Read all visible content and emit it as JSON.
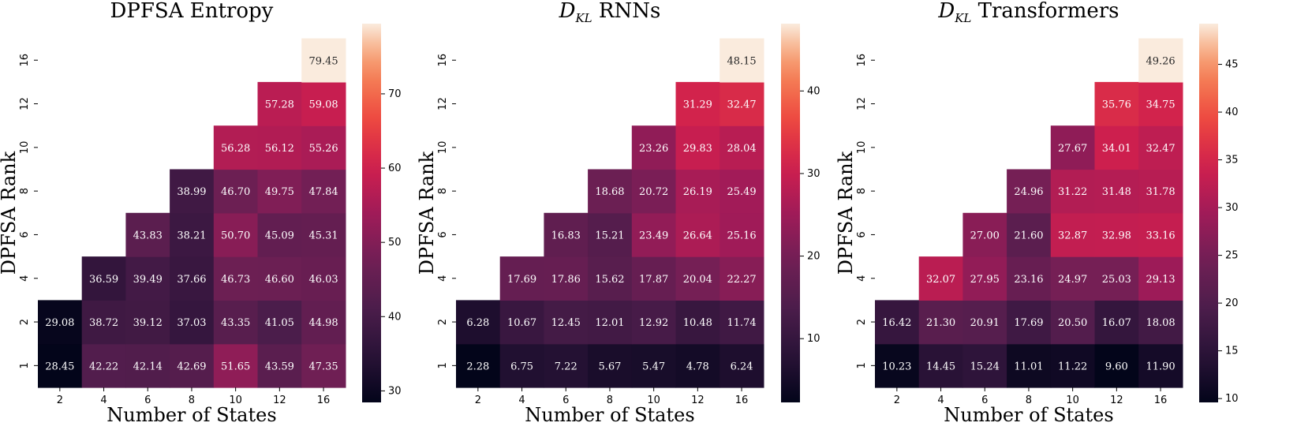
{
  "chart_data": [
    {
      "type": "heatmap",
      "title": "DPFSA Entropy",
      "xlabel": "Number of States",
      "ylabel": "DPFSA Rank",
      "x_categories": [
        "2",
        "4",
        "6",
        "8",
        "10",
        "12",
        "16"
      ],
      "y_categories": [
        "1",
        "2",
        "4",
        "6",
        "8",
        "10",
        "12",
        "16"
      ],
      "values": [
        [
          28.45,
          42.22,
          42.14,
          42.69,
          51.65,
          43.59,
          47.35
        ],
        [
          29.08,
          38.72,
          39.12,
          37.03,
          43.35,
          41.05,
          44.98
        ],
        [
          null,
          36.59,
          39.49,
          37.66,
          46.73,
          46.6,
          46.03
        ],
        [
          null,
          null,
          43.83,
          38.21,
          50.7,
          45.09,
          45.31
        ],
        [
          null,
          null,
          null,
          38.99,
          46.7,
          49.75,
          47.84
        ],
        [
          null,
          null,
          null,
          null,
          56.28,
          56.12,
          55.26
        ],
        [
          null,
          null,
          null,
          null,
          null,
          57.28,
          59.08
        ],
        [
          null,
          null,
          null,
          null,
          null,
          null,
          79.45
        ]
      ],
      "value_labels": [
        [
          "28.45",
          "42.22",
          "42.14",
          "42.69",
          "51.65",
          "43.59",
          "47.35"
        ],
        [
          "29.08",
          "38.72",
          "39.12",
          "37.03",
          "43.35",
          "41.05",
          "44.98"
        ],
        [
          "",
          "36.59",
          "39.49",
          "37.66",
          "46.73",
          "46.60",
          "46.03"
        ],
        [
          "",
          "",
          "43.83",
          "38.21",
          "50.70",
          "45.09",
          "45.31"
        ],
        [
          "",
          "",
          "",
          "38.99",
          "46.70",
          "49.75",
          "47.84"
        ],
        [
          "",
          "",
          "",
          "",
          "56.28",
          "56.12",
          "55.26"
        ],
        [
          "",
          "",
          "",
          "",
          "",
          "57.28",
          "59.08"
        ],
        [
          "",
          "",
          "",
          "",
          "",
          "",
          "79.45"
        ]
      ],
      "colorbar_range": [
        28.45,
        79.45
      ],
      "colorbar_ticks": [
        30,
        40,
        50,
        60,
        70
      ],
      "colormap": "rocket"
    },
    {
      "type": "heatmap",
      "title": "RNNs",
      "title_math": "D",
      "title_math_sub": "KL",
      "xlabel": "Number of States",
      "ylabel": "DPFSA Rank",
      "x_categories": [
        "2",
        "4",
        "6",
        "8",
        "10",
        "12",
        "16"
      ],
      "y_categories": [
        "1",
        "2",
        "4",
        "6",
        "8",
        "10",
        "12",
        "16"
      ],
      "values": [
        [
          2.28,
          6.75,
          7.22,
          5.67,
          5.47,
          4.78,
          6.24
        ],
        [
          6.28,
          10.67,
          12.45,
          12.01,
          12.92,
          10.48,
          11.74
        ],
        [
          null,
          17.69,
          17.86,
          15.62,
          17.87,
          20.04,
          22.27
        ],
        [
          null,
          null,
          16.83,
          15.21,
          23.49,
          26.64,
          25.16
        ],
        [
          null,
          null,
          null,
          18.68,
          20.72,
          26.19,
          25.49
        ],
        [
          null,
          null,
          null,
          null,
          23.26,
          29.83,
          28.04
        ],
        [
          null,
          null,
          null,
          null,
          null,
          31.29,
          32.47
        ],
        [
          null,
          null,
          null,
          null,
          null,
          null,
          48.15
        ]
      ],
      "value_labels": [
        [
          "2.28",
          "6.75",
          "7.22",
          "5.67",
          "5.47",
          "4.78",
          "6.24"
        ],
        [
          "6.28",
          "10.67",
          "12.45",
          "12.01",
          "12.92",
          "10.48",
          "11.74"
        ],
        [
          "",
          "17.69",
          "17.86",
          "15.62",
          "17.87",
          "20.04",
          "22.27"
        ],
        [
          "",
          "",
          "16.83",
          "15.21",
          "23.49",
          "26.64",
          "25.16"
        ],
        [
          "",
          "",
          "",
          "18.68",
          "20.72",
          "26.19",
          "25.49"
        ],
        [
          "",
          "",
          "",
          "",
          "23.26",
          "29.83",
          "28.04"
        ],
        [
          "",
          "",
          "",
          "",
          "",
          "31.29",
          "32.47"
        ],
        [
          "",
          "",
          "",
          "",
          "",
          "",
          "48.15"
        ]
      ],
      "colorbar_range": [
        2.28,
        48.15
      ],
      "colorbar_ticks": [
        10,
        20,
        30,
        40
      ],
      "colormap": "rocket"
    },
    {
      "type": "heatmap",
      "title": "Transformers",
      "title_math": "D",
      "title_math_sub": "KL",
      "xlabel": "Number of States",
      "ylabel": "DPFSA Rank",
      "x_categories": [
        "2",
        "4",
        "6",
        "8",
        "10",
        "12",
        "16"
      ],
      "y_categories": [
        "1",
        "2",
        "4",
        "6",
        "8",
        "10",
        "12",
        "16"
      ],
      "values": [
        [
          10.23,
          14.45,
          15.24,
          11.01,
          11.22,
          9.6,
          11.9
        ],
        [
          16.42,
          21.3,
          20.91,
          17.69,
          20.5,
          16.07,
          18.08
        ],
        [
          null,
          32.07,
          27.95,
          23.16,
          24.97,
          25.03,
          29.13
        ],
        [
          null,
          null,
          27.0,
          21.6,
          32.87,
          32.98,
          33.16
        ],
        [
          null,
          null,
          null,
          24.96,
          31.22,
          31.48,
          31.78
        ],
        [
          null,
          null,
          null,
          null,
          27.67,
          34.01,
          32.47
        ],
        [
          null,
          null,
          null,
          null,
          null,
          35.76,
          34.75
        ],
        [
          null,
          null,
          null,
          null,
          null,
          null,
          49.26
        ]
      ],
      "value_labels": [
        [
          "10.23",
          "14.45",
          "15.24",
          "11.01",
          "11.22",
          "9.60",
          "11.90"
        ],
        [
          "16.42",
          "21.30",
          "20.91",
          "17.69",
          "20.50",
          "16.07",
          "18.08"
        ],
        [
          "",
          "32.07",
          "27.95",
          "23.16",
          "24.97",
          "25.03",
          "29.13"
        ],
        [
          "",
          "",
          "27.00",
          "21.60",
          "32.87",
          "32.98",
          "33.16"
        ],
        [
          "",
          "",
          "",
          "24.96",
          "31.22",
          "31.48",
          "31.78"
        ],
        [
          "",
          "",
          "",
          "",
          "27.67",
          "34.01",
          "32.47"
        ],
        [
          "",
          "",
          "",
          "",
          "",
          "35.76",
          "34.75"
        ],
        [
          "",
          "",
          "",
          "",
          "",
          "",
          "49.26"
        ]
      ],
      "colorbar_range": [
        9.6,
        49.26
      ],
      "colorbar_ticks": [
        10,
        15,
        20,
        25,
        30,
        35,
        40,
        45
      ],
      "colormap": "rocket"
    }
  ]
}
